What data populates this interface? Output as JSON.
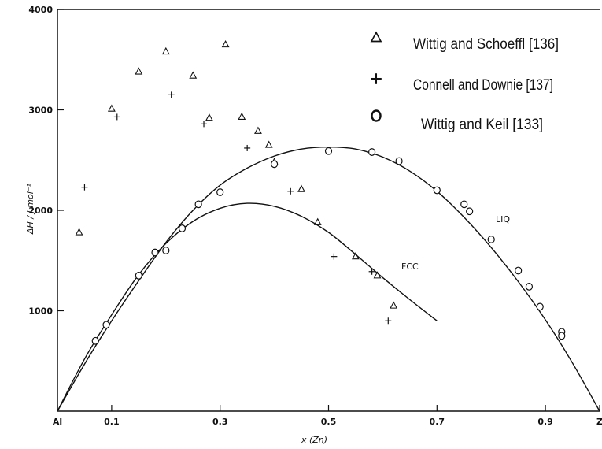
{
  "chart_data": {
    "type": "scatter",
    "title": "",
    "xlabel": "x (Zn)",
    "ylabel": "ΔH / J.mol⁻¹",
    "xlim": [
      0,
      1
    ],
    "ylim": [
      0,
      4000
    ],
    "x_ticks": [
      {
        "value": 0,
        "label": "Al"
      },
      {
        "value": 0.1,
        "label": "0.1"
      },
      {
        "value": 0.3,
        "label": "0.3"
      },
      {
        "value": 0.5,
        "label": "0.5"
      },
      {
        "value": 0.7,
        "label": "0.7"
      },
      {
        "value": 0.9,
        "label": "0.9"
      },
      {
        "value": 1,
        "label": "Z"
      }
    ],
    "y_ticks": [
      {
        "value": 1000,
        "label": "1000"
      },
      {
        "value": 2000,
        "label": "2000"
      },
      {
        "value": 3000,
        "label": "3000"
      },
      {
        "value": 4000,
        "label": "4000"
      }
    ],
    "legend": {
      "position": "top-right",
      "entries": [
        {
          "marker": "triangle",
          "label": "Wittig and Schoeffl [136]"
        },
        {
          "marker": "plus",
          "label": "Connell and Downie [137]"
        },
        {
          "marker": "circle",
          "label": "Wittig and Keil [133]"
        }
      ]
    },
    "series": [
      {
        "name": "Wittig and Schoeffl [136]",
        "marker": "triangle",
        "points": [
          [
            0.04,
            1780
          ],
          [
            0.1,
            3010
          ],
          [
            0.15,
            3380
          ],
          [
            0.2,
            3580
          ],
          [
            0.25,
            3340
          ],
          [
            0.28,
            2920
          ],
          [
            0.31,
            3650
          ],
          [
            0.34,
            2930
          ],
          [
            0.37,
            2790
          ],
          [
            0.39,
            2650
          ],
          [
            0.4,
            2480
          ],
          [
            0.45,
            2210
          ],
          [
            0.48,
            1880
          ],
          [
            0.55,
            1540
          ],
          [
            0.59,
            1350
          ],
          [
            0.62,
            1050
          ]
        ]
      },
      {
        "name": "Connell and Downie [137]",
        "marker": "plus",
        "points": [
          [
            0.05,
            2230
          ],
          [
            0.11,
            2930
          ],
          [
            0.21,
            3150
          ],
          [
            0.27,
            2860
          ],
          [
            0.35,
            2620
          ],
          [
            0.43,
            2190
          ],
          [
            0.51,
            1540
          ],
          [
            0.58,
            1390
          ],
          [
            0.61,
            900
          ]
        ]
      },
      {
        "name": "Wittig and Keil [133]",
        "marker": "circle",
        "points": [
          [
            0.07,
            700
          ],
          [
            0.09,
            860
          ],
          [
            0.15,
            1350
          ],
          [
            0.18,
            1580
          ],
          [
            0.2,
            1600
          ],
          [
            0.23,
            1820
          ],
          [
            0.26,
            2060
          ],
          [
            0.3,
            2180
          ],
          [
            0.4,
            2460
          ],
          [
            0.5,
            2590
          ],
          [
            0.58,
            2580
          ],
          [
            0.63,
            2490
          ],
          [
            0.7,
            2200
          ],
          [
            0.75,
            2060
          ],
          [
            0.76,
            1990
          ],
          [
            0.8,
            1710
          ],
          [
            0.85,
            1400
          ],
          [
            0.87,
            1240
          ],
          [
            0.89,
            1040
          ],
          [
            0.93,
            790
          ],
          [
            0.93,
            750
          ]
        ]
      }
    ],
    "curves": [
      {
        "label": "LIQ",
        "points": [
          [
            0,
            0
          ],
          [
            0.05,
            470
          ],
          [
            0.1,
            900
          ],
          [
            0.15,
            1300
          ],
          [
            0.2,
            1680
          ],
          [
            0.25,
            2000
          ],
          [
            0.3,
            2250
          ],
          [
            0.35,
            2420
          ],
          [
            0.4,
            2540
          ],
          [
            0.45,
            2610
          ],
          [
            0.5,
            2630
          ],
          [
            0.55,
            2610
          ],
          [
            0.6,
            2530
          ],
          [
            0.65,
            2390
          ],
          [
            0.7,
            2190
          ],
          [
            0.75,
            1930
          ],
          [
            0.8,
            1630
          ],
          [
            0.85,
            1290
          ],
          [
            0.9,
            910
          ],
          [
            0.95,
            480
          ],
          [
            1,
            0
          ]
        ]
      },
      {
        "label": "FCC",
        "points": [
          [
            0,
            0
          ],
          [
            0.05,
            520
          ],
          [
            0.1,
            960
          ],
          [
            0.15,
            1360
          ],
          [
            0.2,
            1670
          ],
          [
            0.25,
            1890
          ],
          [
            0.3,
            2020
          ],
          [
            0.35,
            2070
          ],
          [
            0.4,
            2040
          ],
          [
            0.45,
            1940
          ],
          [
            0.5,
            1780
          ],
          [
            0.55,
            1560
          ],
          [
            0.6,
            1330
          ],
          [
            0.65,
            1110
          ],
          [
            0.7,
            900
          ]
        ]
      }
    ]
  }
}
